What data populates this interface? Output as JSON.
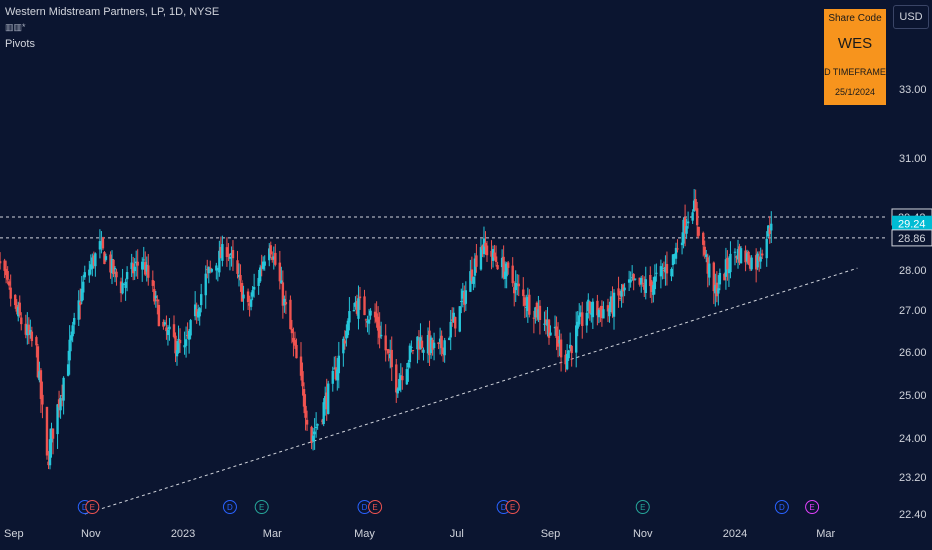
{
  "header": {
    "title": "Western Midstream Partners, LP, 1D, NYSE",
    "icon_glyph": "▥▥*",
    "indicator": "Pivots"
  },
  "currency_button": "USD",
  "share_box": {
    "label": "Share Code",
    "code": "WES",
    "timeframe": "D TIMEFRAME",
    "date": "25/1/2024"
  },
  "colors": {
    "background": "#0b1530",
    "up": "#26c6da",
    "down": "#ef5350",
    "share_box": "#f7941d",
    "last_price_badge": "#00bcd4"
  },
  "chart_data": {
    "type": "candlestick",
    "ylim": [
      22.4,
      34.0
    ],
    "y_tick_labels": [
      "33.00",
      "31.00",
      "28.00",
      "27.00",
      "26.00",
      "25.00",
      "24.00",
      "23.20",
      "22.40"
    ],
    "x_tick_labels": [
      "Sep",
      "Nov",
      "2023",
      "Mar",
      "May",
      "Jul",
      "Sep",
      "Nov",
      "2024",
      "Mar"
    ],
    "x_range": [
      "2022-08-25",
      "2024-03-25"
    ],
    "price_levels": [
      {
        "label": "29.42",
        "value": 29.42,
        "line": "dashed"
      },
      {
        "label": "29.24",
        "value": 29.24,
        "highlight": true
      },
      {
        "label": "28.86",
        "value": 28.86,
        "line": "dashed"
      }
    ],
    "trendline": {
      "start": {
        "date": "2022-10-28",
        "price": 22.4
      },
      "end": {
        "date": "2024-03-22",
        "price": 28.05
      }
    },
    "close_path": [
      [
        "2022-08-29",
        28.5
      ],
      [
        "2022-09-12",
        27.0
      ],
      [
        "2022-09-26",
        26.0
      ],
      [
        "2022-10-03",
        23.5
      ],
      [
        "2022-10-14",
        25.4
      ],
      [
        "2022-10-28",
        27.8
      ],
      [
        "2022-11-07",
        28.6
      ],
      [
        "2022-11-21",
        27.6
      ],
      [
        "2022-12-05",
        28.3
      ],
      [
        "2022-12-19",
        26.5
      ],
      [
        "2023-01-02",
        26.0
      ],
      [
        "2023-01-16",
        27.8
      ],
      [
        "2023-01-30",
        28.6
      ],
      [
        "2023-02-13",
        27.0
      ],
      [
        "2023-02-27",
        28.8
      ],
      [
        "2023-03-13",
        26.5
      ],
      [
        "2023-03-27",
        24.0
      ],
      [
        "2023-04-10",
        25.3
      ],
      [
        "2023-04-24",
        27.2
      ],
      [
        "2023-05-08",
        26.8
      ],
      [
        "2023-05-22",
        25.3
      ],
      [
        "2023-06-05",
        26.3
      ],
      [
        "2023-06-19",
        26.0
      ],
      [
        "2023-07-03",
        27.0
      ],
      [
        "2023-07-17",
        28.7
      ],
      [
        "2023-07-31",
        28.1
      ],
      [
        "2023-08-14",
        27.3
      ],
      [
        "2023-08-28",
        26.8
      ],
      [
        "2023-09-11",
        25.9
      ],
      [
        "2023-09-25",
        27.0
      ],
      [
        "2023-10-09",
        27.0
      ],
      [
        "2023-10-23",
        27.6
      ],
      [
        "2023-11-06",
        27.6
      ],
      [
        "2023-11-20",
        28.2
      ],
      [
        "2023-12-04",
        29.8
      ],
      [
        "2023-12-18",
        27.4
      ],
      [
        "2024-01-01",
        28.5
      ],
      [
        "2024-01-15",
        28.2
      ],
      [
        "2024-01-25",
        29.24
      ]
    ],
    "events": [
      {
        "label": "D",
        "date": "2022-10-28",
        "color": "#2962ff"
      },
      {
        "label": "E",
        "date": "2022-11-02",
        "color": "#ef5350"
      },
      {
        "label": "D",
        "date": "2023-02-01",
        "color": "#2962ff"
      },
      {
        "label": "E",
        "date": "2023-02-22",
        "color": "#26a69a"
      },
      {
        "label": "D",
        "date": "2023-05-01",
        "color": "#2962ff"
      },
      {
        "label": "E",
        "date": "2023-05-08",
        "color": "#ef5350"
      },
      {
        "label": "D",
        "date": "2023-08-01",
        "color": "#2962ff"
      },
      {
        "label": "E",
        "date": "2023-08-07",
        "color": "#ef5350"
      },
      {
        "label": "E",
        "date": "2023-11-01",
        "color": "#26a69a"
      },
      {
        "label": "D",
        "date": "2024-02-01",
        "color": "#2962ff"
      },
      {
        "label": "E",
        "date": "2024-02-21",
        "color": "#e040fb"
      }
    ]
  }
}
